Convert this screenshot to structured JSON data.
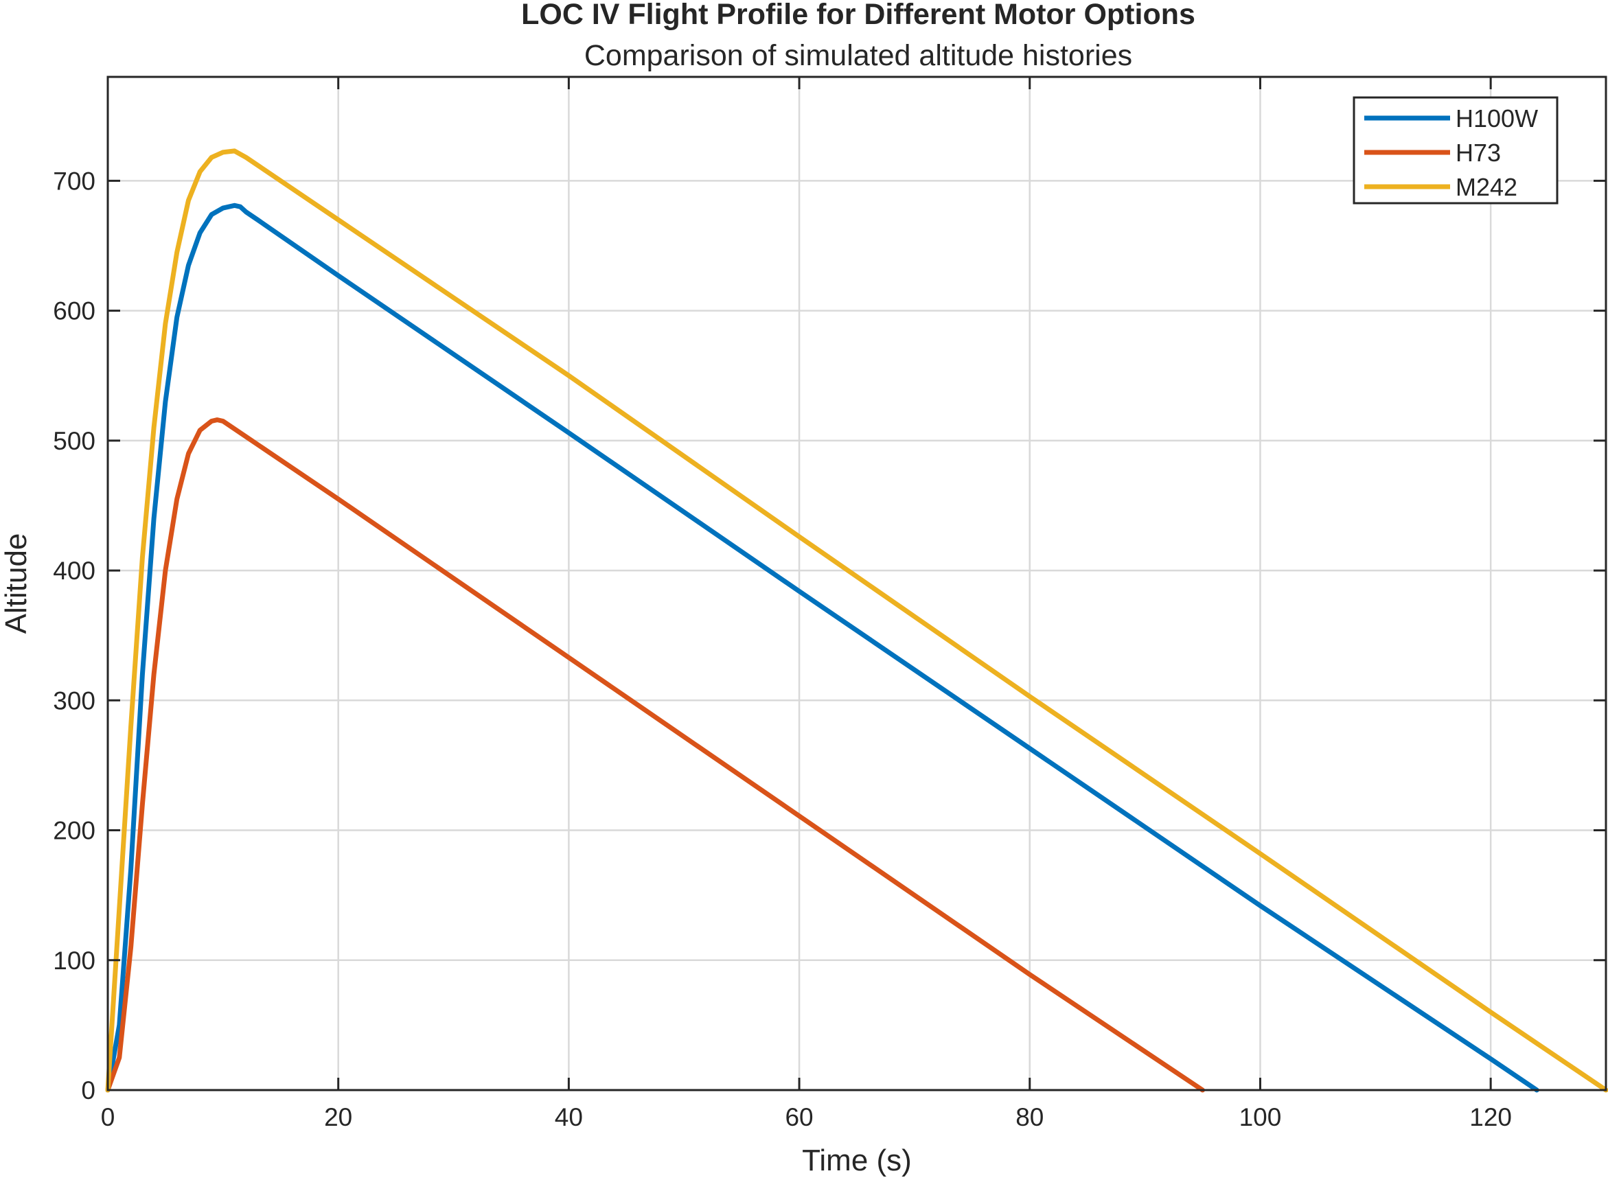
{
  "chart_data": {
    "type": "line",
    "title": "LOC IV Flight Profile for Different Motor Options",
    "subtitle": "Comparison of simulated altitude histories",
    "xlabel": "Time (s)",
    "ylabel": "Altitude",
    "xlim": [
      0,
      130
    ],
    "ylim": [
      0,
      780
    ],
    "xticks": [
      0,
      20,
      40,
      60,
      80,
      100,
      120
    ],
    "yticks": [
      0,
      100,
      200,
      300,
      400,
      500,
      600,
      700
    ],
    "xtick_labels": [
      "0",
      "20",
      "40",
      "60",
      "80",
      "100",
      "120"
    ],
    "ytick_labels": [
      "0",
      "100",
      "200",
      "300",
      "400",
      "500",
      "600",
      "700"
    ],
    "grid": true,
    "legend_position": "top-right",
    "series": [
      {
        "name": "H100W",
        "color": "#0072bd",
        "x": [
          0,
          1,
          2,
          3,
          4,
          5,
          6,
          7,
          8,
          9,
          10,
          11,
          11.5,
          12,
          13,
          20,
          40,
          60,
          80,
          100,
          120,
          124
        ],
        "y": [
          0,
          50,
          170,
          320,
          440,
          530,
          595,
          635,
          660,
          674,
          679,
          681,
          680,
          676,
          670,
          627,
          506,
          384,
          263,
          142,
          24,
          0
        ]
      },
      {
        "name": "H73",
        "color": "#d95319",
        "x": [
          0,
          1,
          2,
          3,
          4,
          5,
          6,
          7,
          8,
          9,
          9.5,
          10,
          20,
          40,
          60,
          80,
          95
        ],
        "y": [
          0,
          25,
          110,
          220,
          320,
          400,
          455,
          490,
          508,
          515,
          516,
          515,
          455,
          333,
          211,
          89,
          0
        ]
      },
      {
        "name": "M242",
        "color": "#edb120",
        "x": [
          0,
          1,
          2,
          3,
          4,
          5,
          6,
          7,
          8,
          9,
          10,
          11,
          12,
          20,
          40,
          60,
          80,
          100,
          120,
          130
        ],
        "y": [
          0,
          140,
          280,
          410,
          510,
          590,
          645,
          685,
          707,
          718,
          722,
          723,
          718,
          670,
          550,
          426,
          303,
          182,
          60,
          0
        ]
      }
    ]
  }
}
